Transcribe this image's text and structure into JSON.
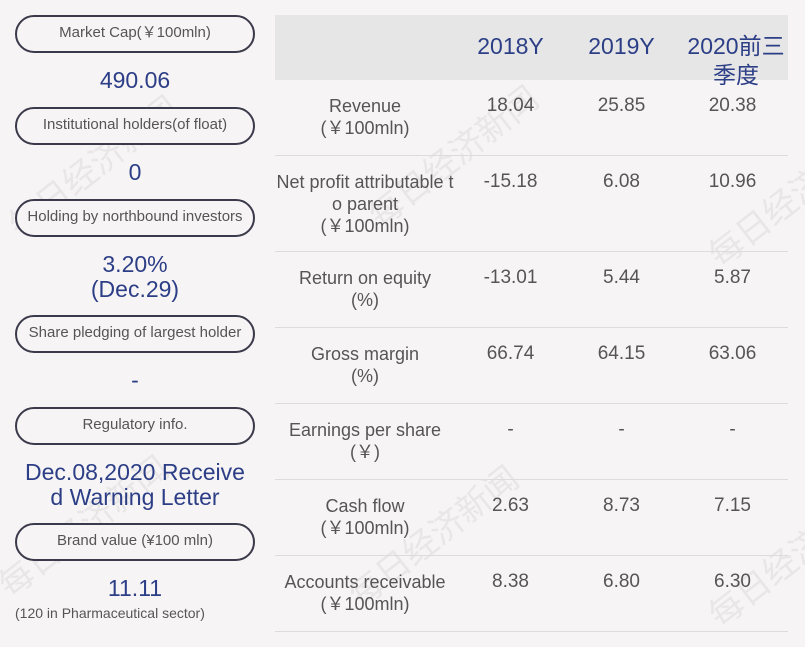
{
  "left_panel": {
    "market_cap": {
      "label": "Market Cap(￥100mln)",
      "value": "490.06"
    },
    "institutional": {
      "label": "Institutional holders(of float)",
      "value": "0"
    },
    "northbound": {
      "label": "Holding by northbound investors",
      "value_line1": "3.20%",
      "value_line2": "(Dec.29)"
    },
    "pledging": {
      "label": "Share pledging of largest holder",
      "value": "-"
    },
    "regulatory": {
      "label": "Regulatory info.",
      "value_line1": "Dec.08,2020 Receive",
      "value_line2": "d Warning Letter"
    },
    "brand": {
      "label": "Brand value (¥100 mln)",
      "value": "11.11",
      "note": "(120 in Pharmaceutical sector)"
    }
  },
  "table": {
    "headers": {
      "y1": "2018Y",
      "y2": "2019Y",
      "y3_line1": "2020前三",
      "y3_line2": "季度"
    },
    "rows": [
      {
        "label_line1": "Revenue",
        "label_line2": "(￥100mln)",
        "label_line3": "",
        "v1": "18.04",
        "v2": "25.85",
        "v3": "20.38"
      },
      {
        "label_line1": "Net profit attributable t",
        "label_line2": "o parent",
        "label_line3": "(￥100mln)",
        "v1": "-15.18",
        "v2": "6.08",
        "v3": "10.96"
      },
      {
        "label_line1": "Return on equity",
        "label_line2": "(%)",
        "label_line3": "",
        "v1": "-13.01",
        "v2": "5.44",
        "v3": "5.87"
      },
      {
        "label_line1": "Gross margin",
        "label_line2": "(%)",
        "label_line3": "",
        "v1": "66.74",
        "v2": "64.15",
        "v3": "63.06"
      },
      {
        "label_line1": "Earnings per share",
        "label_line2": "(￥)",
        "label_line3": "",
        "v1": "-",
        "v2": "-",
        "v3": "-"
      },
      {
        "label_line1": "Cash flow",
        "label_line2": "(￥100mln)",
        "label_line3": "",
        "v1": "2.63",
        "v2": "8.73",
        "v3": "7.15"
      },
      {
        "label_line1": "Accounts receivable",
        "label_line2": "(￥100mln)",
        "label_line3": "",
        "v1": "8.38",
        "v2": "6.80",
        "v3": "6.30"
      }
    ]
  },
  "watermark": "每日经济新闻"
}
